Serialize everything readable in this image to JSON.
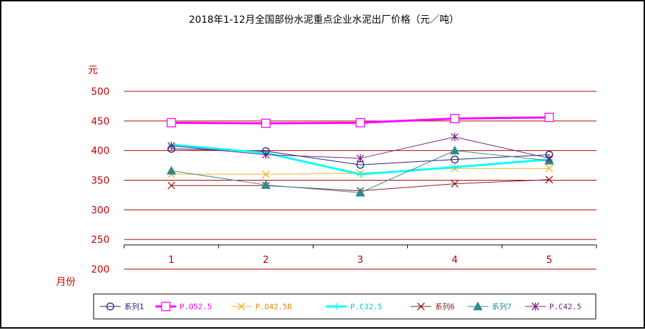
{
  "chart_data": {
    "type": "line",
    "title": "2018年1-12月全国部份水泥重点企业水泥出厂价格（元／吨）",
    "ylabel": "元",
    "xlabel": "月份",
    "categories": [
      "1",
      "2",
      "3",
      "4",
      "5"
    ],
    "ylim": [
      200,
      500
    ],
    "yticks": [
      200,
      250,
      300,
      350,
      400,
      450,
      500
    ],
    "grid": true,
    "legend_position": "bottom",
    "series": [
      {
        "name": "系列1",
        "values": [
          403,
          399,
          376,
          385,
          393
        ],
        "color": "#1f1f7a",
        "marker": "circle",
        "width": 1
      },
      {
        "name": "P.O52.5",
        "values": [
          447,
          446,
          447,
          454,
          456
        ],
        "color": "#ff00ff",
        "marker": "square",
        "width": 3
      },
      {
        "name": "P.O42.5R",
        "values": [
          360,
          360,
          362,
          370,
          370
        ],
        "color": "#f0b020",
        "marker": "x",
        "width": 1
      },
      {
        "name": "P.C32.5",
        "values": [
          410,
          396,
          360,
          372,
          385
        ],
        "color": "#00ffff",
        "marker": "plus",
        "width": 3
      },
      {
        "name": "系列6",
        "values": [
          341,
          341,
          332,
          344,
          351
        ],
        "color": "#8b1a1a",
        "marker": "x",
        "width": 1
      },
      {
        "name": "系列7",
        "values": [
          366,
          342,
          329,
          400,
          383
        ],
        "color": "#2e8b8b",
        "marker": "triangle",
        "width": 1
      },
      {
        "name": "P.C42.5",
        "values": [
          408,
          393,
          387,
          423,
          387
        ],
        "color": "#7b1f7b",
        "marker": "star",
        "width": 1
      }
    ]
  }
}
